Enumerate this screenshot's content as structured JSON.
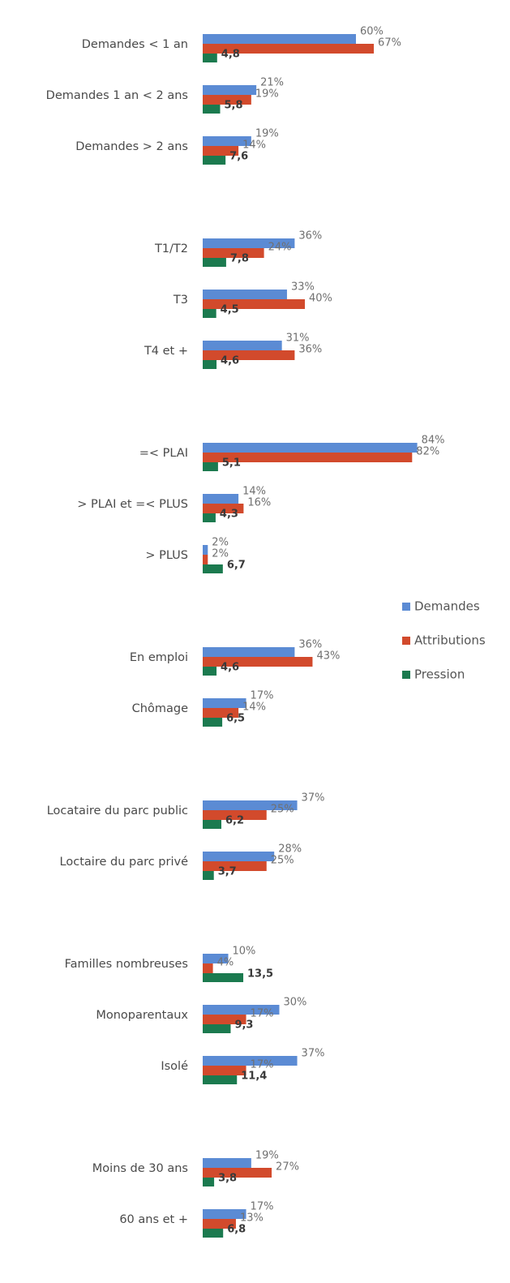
{
  "chart_data": {
    "type": "hbar",
    "categories": [
      "Demandes < 1 an",
      "Demandes 1 an < 2 ans",
      "Demandes > 2 ans",
      null,
      "T1/T2",
      "T3",
      "T4 et +",
      null,
      "=< PLAI",
      "> PLAI et =< PLUS",
      "> PLUS",
      null,
      "En emploi",
      "Chômage",
      null,
      "Locataire du parc public",
      "Loctaire du parc privé",
      null,
      "Familles nombreuses",
      "Monoparentaux",
      "Isolé",
      null,
      "Moins de 30 ans",
      "60 ans et +"
    ],
    "series": [
      {
        "name": "Demandes",
        "color": "#5b8bd4",
        "values": [
          60,
          21,
          19,
          null,
          36,
          33,
          31,
          null,
          84,
          14,
          2,
          null,
          36,
          17,
          null,
          37,
          28,
          null,
          10,
          30,
          37,
          null,
          19,
          17
        ],
        "value_labels": [
          "60%",
          "21%",
          "19%",
          null,
          "36%",
          "33%",
          "31%",
          null,
          "84%",
          "14%",
          "2%",
          null,
          "36%",
          "17%",
          null,
          "37%",
          "28%",
          null,
          "10%",
          "30%",
          "37%",
          null,
          "19%",
          "17%"
        ]
      },
      {
        "name": "Attributions",
        "color": "#d24a2c",
        "values": [
          67,
          19,
          14,
          null,
          24,
          40,
          36,
          null,
          82,
          16,
          2,
          null,
          43,
          14,
          null,
          25,
          25,
          null,
          4,
          17,
          17,
          null,
          27,
          13
        ],
        "value_labels": [
          "67%",
          "19%",
          "14%",
          null,
          "24%",
          "40%",
          "36%",
          null,
          "82%",
          "16%",
          "2%",
          null,
          "43%",
          "14%",
          null,
          "25%",
          "25%",
          null,
          "4%",
          "17%",
          "17%",
          null,
          "27%",
          "13%"
        ]
      },
      {
        "name": "Pression",
        "color": "#1b7a4f",
        "axis": "x2",
        "values": [
          4.8,
          5.8,
          7.6,
          null,
          7.8,
          4.5,
          4.6,
          null,
          5.1,
          4.3,
          6.7,
          null,
          4.6,
          6.5,
          null,
          6.2,
          3.7,
          null,
          13.5,
          9.3,
          11.4,
          null,
          3.8,
          6.8
        ],
        "value_labels": [
          "4,8",
          "5,8",
          "7,6",
          null,
          "7,8",
          "4,5",
          "4,6",
          null,
          "5,1",
          "4,3",
          "6,7",
          null,
          "4,6",
          "6,5",
          null,
          "6,2",
          "3,7",
          null,
          "13,5",
          "9,3",
          "11,4",
          null,
          "3,8",
          "6,8"
        ]
      }
    ],
    "xlim": [
      0,
      100
    ],
    "x2lim": [
      0,
      85
    ],
    "legend": "right"
  }
}
